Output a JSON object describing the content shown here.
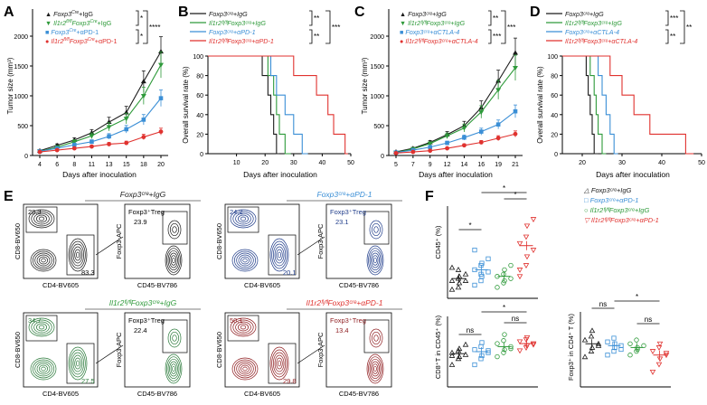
{
  "panels": {
    "A": {
      "letter": "A",
      "xlabel": "Days after inoculation",
      "ylabel": "Tumor size (mm³)",
      "yticks": [
        "0",
        "500",
        "1000",
        "1500",
        "2000"
      ],
      "xticks": [
        "4",
        "6",
        "8",
        "11",
        "13",
        "15",
        "18",
        "20"
      ],
      "legend": [
        {
          "gene": "Foxp3",
          "sup": "Cre",
          "rest": "+IgG"
        },
        {
          "gene": "Il1r2",
          "sup": "fl/fl",
          "gene2": "Foxp3",
          "sup2": "Cre",
          "rest": "+IgG"
        },
        {
          "gene": "Foxp3",
          "sup": "Cre",
          "rest": "+αPD-1"
        },
        {
          "gene": "Il1r2",
          "sup": "fl/fl",
          "gene2": "Foxp3",
          "sup2": "Cre",
          "rest": "+αPD-1"
        }
      ],
      "sig": [
        "*",
        "*",
        "****"
      ]
    },
    "B": {
      "letter": "B",
      "xlabel": "Days after inoculation",
      "ylabel": "Overall survival rate (%)",
      "yticks": [
        "0",
        "20",
        "40",
        "60",
        "80",
        "100"
      ],
      "xticks": [
        "10",
        "20",
        "30",
        "40",
        "50"
      ],
      "legend": [
        "Foxp3ᶜʳᵉ+IgG",
        "Il1r2ᶠˡ/ᶠˡFoxp3ᶜʳᵉ+IgG",
        "Foxp3ᶜʳᵉ+αPD-1",
        "Il1r2ᶠˡ/ᶠˡFoxp3ᶜʳᵉ+αPD-1"
      ],
      "sig": [
        "**",
        "**",
        "***"
      ]
    },
    "C": {
      "letter": "C",
      "xlabel": "Days after inoculation",
      "ylabel": "Tumor size (mm³)",
      "yticks": [
        "0",
        "500",
        "1000",
        "1500",
        "2000"
      ],
      "xticks": [
        "5",
        "7",
        "9",
        "12",
        "14",
        "16",
        "19",
        "21"
      ],
      "legend": [
        "Foxp3ᶜʳᵉ+IgG",
        "Il1r2ᶠˡ/ᶠˡFoxp3ᶜʳᵉ+IgG",
        "Foxp3ᶜʳᵉ+αCTLA-4",
        "Il1r2ᶠˡ/ᶠˡFoxp3ᶜʳᵉ+αCTLA-4"
      ],
      "sig": [
        "**",
        "***",
        "***"
      ]
    },
    "D": {
      "letter": "D",
      "xlabel": "Days after inoculation",
      "ylabel": "Overall survival rate (%)",
      "yticks": [
        "0",
        "20",
        "40",
        "60",
        "80",
        "100"
      ],
      "xticks": [
        "20",
        "30",
        "40",
        "50"
      ],
      "legend": [
        "Foxp3ᶜʳᵉ+IgG",
        "Il1r2ᶠˡ/ᶠˡFoxp3ᶜʳᵉ+IgG",
        "Foxp3ᶜʳᵉ+αCTLA-4",
        "Il1r2ᶠˡ/ᶠˡFoxp3ᶜʳᵉ+αCTLA-4"
      ],
      "sig": [
        "***",
        "**",
        "**"
      ]
    },
    "E": {
      "letter": "E",
      "blocks": [
        {
          "title": "Foxp3ᶜʳᵉ+IgG",
          "cd8": "28.3",
          "cd4": "83.3",
          "treg_label": "Foxp3⁺Treg",
          "treg": "23.9"
        },
        {
          "title": "Foxp3ᶜʳᵉ+αPD-1",
          "cd8": "24.2",
          "cd4": "20.1",
          "treg_label": "Foxp3⁺Treg",
          "treg": "23.1"
        },
        {
          "title": "Il1r2ᶠˡ/ᶠˡFoxp3ᶜʳᵉ+IgG",
          "cd8": "34.7",
          "cd4": "27.5",
          "treg_label": "Foxp3⁺Treg",
          "treg": "22.4"
        },
        {
          "title": "Il1r2ᶠˡ/ᶠˡFoxp3ᶜʳᵉ+αPD-1",
          "cd8": "50.1",
          "cd4": "29.8",
          "treg_label": "Foxp3⁺Treg",
          "treg": "13.4"
        }
      ],
      "axis_cd8": "CD8-BV650",
      "axis_cd4": "CD4-BV605",
      "axis_foxp3": "Foxp3-APC",
      "axis_cd45": "CD45-BV786"
    },
    "F": {
      "letter": "F",
      "legend": [
        "Foxp3ᶜʳᵉ+IgG",
        "Foxp3ᶜʳᵉ+αPD-1",
        "Il1r2ᶠˡ/ᶠˡFoxp3ᶜʳᵉ+IgG",
        "Il1r2ᶠˡ/ᶠˡFoxp3ᶜʳᵉ+αPD-1"
      ],
      "ylabel_cd45": "CD45⁺ (%)",
      "ylabel_cd8": "CD8⁺T in CD45⁺ (%)",
      "ylabel_foxp3": "Foxp3⁺ in CD4⁺ T (%)",
      "sig_cd45": [
        "*",
        "*",
        "*"
      ],
      "sig_cd8": [
        "ns",
        "ns",
        "*"
      ],
      "sig_foxp3": [
        "ns",
        "ns",
        "*"
      ]
    }
  },
  "colors": {
    "black": "#1a1a1a",
    "green": "#2e9a3a",
    "blue": "#3b8fd6",
    "red": "#e0322f",
    "navy": "#1f3c8a",
    "darkred": "#8e1c1f",
    "darkgreen": "#2a7a3a"
  },
  "chart_data": [
    {
      "type": "line",
      "title": "A",
      "xlabel": "Days after inoculation",
      "ylabel": "Tumor size (mm³)",
      "x": [
        4,
        6,
        8,
        11,
        13,
        15,
        18,
        20
      ],
      "ylim": [
        0,
        2000
      ],
      "series": [
        {
          "name": "Foxp3Cre+IgG",
          "color": "#1a1a1a",
          "values": [
            80,
            170,
            260,
            380,
            560,
            720,
            1240,
            1740
          ]
        },
        {
          "name": "Il1r2fl/flFoxp3Cre+IgG",
          "color": "#2e9a3a",
          "values": [
            70,
            140,
            230,
            330,
            480,
            620,
            1000,
            1520
          ]
        },
        {
          "name": "Foxp3Cre+aPD-1",
          "color": "#3b8fd6",
          "values": [
            70,
            120,
            180,
            230,
            320,
            440,
            600,
            960
          ]
        },
        {
          "name": "Il1r2fl/flFoxp3Cre+aPD-1",
          "color": "#e0322f",
          "values": [
            60,
            90,
            120,
            150,
            190,
            210,
            310,
            400
          ]
        }
      ]
    },
    {
      "type": "line",
      "title": "B",
      "xlabel": "Days after inoculation",
      "ylabel": "Overall survival rate (%)",
      "xlim": [
        0,
        50
      ],
      "ylim": [
        0,
        100
      ],
      "series": [
        {
          "name": "Foxp3Cre+IgG",
          "color": "#1a1a1a",
          "steps": [
            [
              0,
              100
            ],
            [
              19,
              100
            ],
            [
              19,
              80
            ],
            [
              21,
              80
            ],
            [
              21,
              60
            ],
            [
              22,
              60
            ],
            [
              22,
              40
            ],
            [
              23,
              40
            ],
            [
              23,
              20
            ],
            [
              24,
              20
            ],
            [
              24,
              0
            ],
            [
              25,
              0
            ]
          ]
        },
        {
          "name": "Il1r2fl/flFoxp3Cre+IgG",
          "color": "#2e9a3a",
          "steps": [
            [
              0,
              100
            ],
            [
              21,
              100
            ],
            [
              21,
              80
            ],
            [
              23,
              80
            ],
            [
              23,
              60
            ],
            [
              24,
              60
            ],
            [
              24,
              40
            ],
            [
              25,
              40
            ],
            [
              25,
              20
            ],
            [
              27,
              20
            ],
            [
              27,
              0
            ],
            [
              29,
              0
            ]
          ]
        },
        {
          "name": "Foxp3Cre+aPD-1",
          "color": "#3b8fd6",
          "steps": [
            [
              0,
              100
            ],
            [
              22,
              100
            ],
            [
              22,
              80
            ],
            [
              24,
              80
            ],
            [
              24,
              60
            ],
            [
              27,
              60
            ],
            [
              27,
              40
            ],
            [
              30,
              40
            ],
            [
              30,
              20
            ],
            [
              33,
              20
            ],
            [
              33,
              0
            ],
            [
              35,
              0
            ]
          ]
        },
        {
          "name": "Il1r2fl/flFoxp3Cre+aPD-1",
          "color": "#e0322f",
          "steps": [
            [
              0,
              100
            ],
            [
              30,
              100
            ],
            [
              30,
              80
            ],
            [
              38,
              80
            ],
            [
              38,
              60
            ],
            [
              42,
              60
            ],
            [
              42,
              40
            ],
            [
              44,
              40
            ],
            [
              44,
              20
            ],
            [
              48,
              20
            ],
            [
              48,
              0
            ],
            [
              49,
              0
            ]
          ]
        }
      ]
    },
    {
      "type": "line",
      "title": "C",
      "xlabel": "Days after inoculation",
      "ylabel": "Tumor size (mm³)",
      "x": [
        5,
        7,
        9,
        12,
        14,
        16,
        19,
        21
      ],
      "ylim": [
        0,
        2000
      ],
      "series": [
        {
          "name": "Foxp3Cre+IgG",
          "color": "#1a1a1a",
          "values": [
            60,
            120,
            220,
            350,
            500,
            800,
            1250,
            1720
          ]
        },
        {
          "name": "Il1r2fl/flFoxp3Cre+IgG",
          "color": "#2e9a3a",
          "values": [
            50,
            110,
            200,
            330,
            460,
            730,
            1100,
            1470
          ]
        },
        {
          "name": "Foxp3Cre+aCTLA-4",
          "color": "#3b8fd6",
          "values": [
            50,
            90,
            140,
            210,
            300,
            400,
            520,
            740
          ]
        },
        {
          "name": "Il1r2fl/flFoxp3Cre+aCTLA-4",
          "color": "#e0322f",
          "values": [
            40,
            60,
            80,
            120,
            170,
            220,
            290,
            360
          ]
        }
      ]
    },
    {
      "type": "line",
      "title": "D",
      "xlabel": "Days after inoculation",
      "ylabel": "Overall survival rate (%)",
      "xlim": [
        15,
        50
      ],
      "ylim": [
        0,
        100
      ],
      "series": [
        {
          "name": "Foxp3Cre+IgG",
          "color": "#1a1a1a",
          "steps": [
            [
              15,
              100
            ],
            [
              21,
              100
            ],
            [
              21,
              80
            ],
            [
              21.5,
              80
            ],
            [
              21.5,
              60
            ],
            [
              22,
              60
            ],
            [
              22,
              40
            ],
            [
              22.5,
              40
            ],
            [
              22.5,
              20
            ],
            [
              23,
              20
            ],
            [
              23,
              0
            ],
            [
              24,
              0
            ]
          ]
        },
        {
          "name": "Il1r2fl/flFoxp3Cre+IgG",
          "color": "#2e9a3a",
          "steps": [
            [
              15,
              100
            ],
            [
              22,
              100
            ],
            [
              22,
              80
            ],
            [
              23,
              80
            ],
            [
              23,
              60
            ],
            [
              23.5,
              60
            ],
            [
              23.5,
              40
            ],
            [
              24,
              40
            ],
            [
              24,
              20
            ],
            [
              25,
              20
            ],
            [
              25,
              0
            ],
            [
              26,
              0
            ]
          ]
        },
        {
          "name": "Foxp3Cre+aCTLA-4",
          "color": "#3b8fd6",
          "steps": [
            [
              15,
              100
            ],
            [
              24,
              100
            ],
            [
              24,
              80
            ],
            [
              25,
              80
            ],
            [
              25,
              60
            ],
            [
              26,
              60
            ],
            [
              26,
              40
            ],
            [
              27,
              40
            ],
            [
              27,
              20
            ],
            [
              28,
              20
            ],
            [
              28,
              0
            ],
            [
              29,
              0
            ]
          ]
        },
        {
          "name": "Il1r2fl/flFoxp3Cre+aCTLA-4",
          "color": "#e0322f",
          "steps": [
            [
              15,
              100
            ],
            [
              27,
              100
            ],
            [
              27,
              80
            ],
            [
              30,
              80
            ],
            [
              30,
              60
            ],
            [
              33,
              60
            ],
            [
              33,
              40
            ],
            [
              37,
              40
            ],
            [
              37,
              20
            ],
            [
              46,
              20
            ],
            [
              46,
              0
            ],
            [
              48,
              0
            ]
          ]
        }
      ]
    },
    {
      "type": "scatter",
      "title": "F CD45+ (%)",
      "ylabel": "CD45⁺ (%)",
      "groups": [
        {
          "name": "Foxp3Cre+IgG",
          "color": "#1a1a1a",
          "marker": "triangle-up",
          "mean": 0.9,
          "values": [
            0.4,
            0.5,
            0.7,
            0.8,
            0.8,
            0.9,
            1.0,
            1.1,
            1.4,
            1.3
          ]
        },
        {
          "name": "Foxp3Cre+aPD-1",
          "color": "#3b8fd6",
          "marker": "square",
          "mean": 1.3,
          "values": [
            0.6,
            0.8,
            1.0,
            1.2,
            1.3,
            1.5,
            1.6,
            1.8,
            2.2,
            1.1
          ]
        },
        {
          "name": "Il1r2fl/flFoxp3Cre+IgG",
          "color": "#2e9a3a",
          "marker": "circle",
          "mean": 1.0,
          "values": [
            0.5,
            0.7,
            0.8,
            0.9,
            1.0,
            1.1,
            1.3,
            1.5
          ]
        },
        {
          "name": "Il1r2fl/flFoxp3Cre+aPD-1",
          "color": "#e0322f",
          "marker": "triangle-down",
          "mean": 2.4,
          "values": [
            1.0,
            1.5,
            1.9,
            2.2,
            2.5,
            2.8,
            3.3,
            3.6,
            1.3
          ]
        }
      ]
    },
    {
      "type": "scatter",
      "title": "F CD8+ T in CD45+ (%)",
      "ylabel": "CD8⁺T in CD45⁺ (%)",
      "groups": [
        {
          "name": "Foxp3Cre+IgG",
          "color": "#1a1a1a",
          "marker": "triangle-up",
          "mean": 33,
          "values": [
            22,
            28,
            30,
            32,
            34,
            36,
            38,
            42,
            31
          ]
        },
        {
          "name": "Foxp3Cre+aPD-1",
          "color": "#3b8fd6",
          "marker": "square",
          "mean": 35,
          "values": [
            22,
            28,
            31,
            34,
            37,
            40,
            44,
            36
          ]
        },
        {
          "name": "Il1r2fl/flFoxp3Cre+IgG",
          "color": "#2e9a3a",
          "marker": "circle",
          "mean": 40,
          "values": [
            30,
            34,
            37,
            40,
            43,
            46,
            52,
            38
          ]
        },
        {
          "name": "Il1r2fl/flFoxp3Cre+aPD-1",
          "color": "#e0322f",
          "marker": "triangle-down",
          "mean": 43,
          "values": [
            36,
            39,
            41,
            43,
            45,
            47,
            49,
            42
          ]
        }
      ]
    },
    {
      "type": "scatter",
      "title": "F Foxp3+ in CD4+ T (%)",
      "ylabel": "Foxp3⁺ in CD4⁺ T (%)",
      "groups": [
        {
          "name": "Foxp3Cre+IgG",
          "color": "#1a1a1a",
          "marker": "triangle-up",
          "mean": 23,
          "values": [
            16,
            19,
            21,
            23,
            25,
            27,
            30,
            22
          ]
        },
        {
          "name": "Foxp3Cre+aPD-1",
          "color": "#3b8fd6",
          "marker": "square",
          "mean": 22,
          "values": [
            17,
            19,
            21,
            22,
            24,
            26,
            23,
            20
          ]
        },
        {
          "name": "Il1r2fl/flFoxp3Cre+IgG",
          "color": "#2e9a3a",
          "marker": "circle",
          "mean": 21,
          "values": [
            17,
            19,
            20,
            22,
            23,
            25,
            21
          ]
        },
        {
          "name": "Il1r2fl/flFoxp3Cre+aPD-1",
          "color": "#e0322f",
          "marker": "triangle-down",
          "mean": 17,
          "values": [
            8,
            12,
            15,
            17,
            19,
            21,
            23,
            18
          ]
        }
      ]
    }
  ]
}
